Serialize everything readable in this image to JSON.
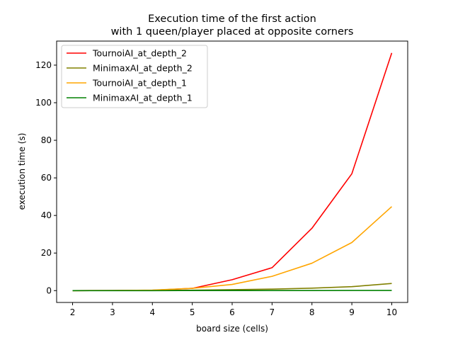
{
  "chart_data": {
    "type": "line",
    "title": "Execution time of the first action",
    "subtitle": "with 1 queen/player placed at opposite corners",
    "xlabel": "board size (cells)",
    "ylabel": "execution time (s)",
    "x": [
      2,
      3,
      4,
      5,
      6,
      7,
      8,
      9,
      10
    ],
    "xlim": [
      1.6,
      10.4
    ],
    "ylim": [
      -6.3,
      132.8
    ],
    "xticks": [
      2,
      3,
      4,
      5,
      6,
      7,
      8,
      9,
      10
    ],
    "yticks": [
      0,
      20,
      40,
      60,
      80,
      100,
      120
    ],
    "grid": false,
    "legend_position": "top-left",
    "series": [
      {
        "name": "TournoiAI_at_depth_2",
        "color": "#ff0000",
        "values": [
          0.0,
          0.05,
          0.2,
          1.2,
          5.8,
          12.2,
          33.2,
          62.2,
          126.5
        ]
      },
      {
        "name": "MinimaxAI_at_depth_2",
        "color": "#808000",
        "values": [
          0.0,
          0.03,
          0.1,
          0.25,
          0.5,
          0.8,
          1.3,
          2.1,
          3.8
        ]
      },
      {
        "name": "TournoiAI_at_depth_1",
        "color": "#ffa500",
        "values": [
          0.0,
          0.05,
          0.3,
          1.2,
          3.3,
          7.6,
          14.6,
          25.6,
          44.7
        ]
      },
      {
        "name": "MinimaxAI_at_depth_1",
        "color": "#008000",
        "values": [
          0.0,
          0.0,
          0.0,
          0.05,
          0.05,
          0.05,
          0.05,
          0.1,
          0.1
        ]
      }
    ]
  }
}
